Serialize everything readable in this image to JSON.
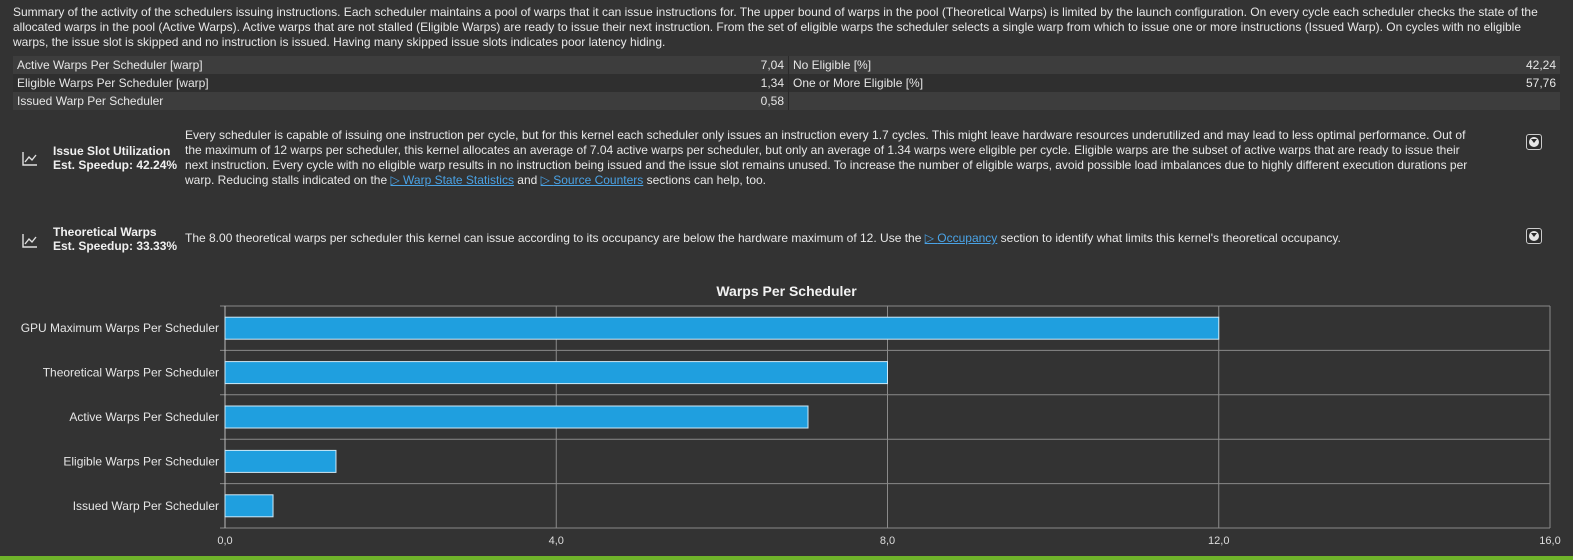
{
  "summary": "Summary of the activity of the schedulers issuing instructions. Each scheduler maintains a pool of warps that it can issue instructions for. The upper bound of warps in the pool (Theoretical Warps) is limited by the launch configuration. On every cycle each scheduler checks the state of the allocated warps in the pool (Active Warps). Active warps that are not stalled (Eligible Warps) are ready to issue their next instruction. From the set of eligible warps the scheduler selects a single warp from which to issue one or more instructions (Issued Warp). On cycles with no eligible warps, the issue slot is skipped and no instruction is issued. Having many skipped issue slots indicates poor latency hiding.",
  "metrics": [
    {
      "left_label": "Active Warps Per Scheduler [warp]",
      "left_value": "7,04",
      "right_label": "No Eligible [%]",
      "right_value": "42,24"
    },
    {
      "left_label": "Eligible Warps Per Scheduler [warp]",
      "left_value": "1,34",
      "right_label": "One or More Eligible [%]",
      "right_value": "57,76"
    },
    {
      "left_label": "Issued Warp Per Scheduler",
      "left_value": "0,58",
      "right_label": "",
      "right_value": ""
    }
  ],
  "rules": [
    {
      "title": "Issue Slot Utilization",
      "speedup": "Est. Speedup: 42.24%",
      "text_a": "Every scheduler is capable of issuing one instruction per cycle, but for this kernel each scheduler only issues an instruction every 1.7 cycles. This might leave hardware resources underutilized and may lead to less optimal performance. Out of the maximum of 12 warps per scheduler, this kernel allocates an average of 7.04 active warps per scheduler, but only an average of 1.34 warps were eligible per cycle. Eligible warps are the subset of active warps that are ready to issue their next instruction. Every cycle with no eligible warp results in no instruction being issued and the issue slot remains unused. To increase the number of eligible warps, avoid possible load imbalances due to highly different execution durations per warp. Reducing stalls indicated on the ",
      "link1": "Warp State Statistics",
      "text_b": " and ",
      "link2": "Source Counters",
      "text_c": " sections can help, too.",
      "icon": "line-chart-icon"
    },
    {
      "title": "Theoretical Warps",
      "speedup": "Est. Speedup: 33.33%",
      "text_a": "The 8.00 theoretical warps per scheduler this kernel can issue according to its occupancy are below the hardware maximum of 12. Use the ",
      "link1": "Occupancy",
      "text_b": " section to identify what limits this kernel's theoretical occupancy.",
      "icon": "line-chart-icon"
    }
  ],
  "chart_data": {
    "type": "bar",
    "orientation": "horizontal",
    "title": "Warps Per Scheduler",
    "categories": [
      "GPU Maximum Warps Per Scheduler",
      "Theoretical Warps Per Scheduler",
      "Active Warps Per Scheduler",
      "Eligible Warps Per Scheduler",
      "Issued Warp Per Scheduler"
    ],
    "values": [
      12,
      8,
      7.04,
      1.34,
      0.58
    ],
    "xlim": [
      0,
      16
    ],
    "xticks": [
      "0,0",
      "4,0",
      "8,0",
      "12,0",
      "16,0"
    ],
    "bar_color": "#1f9fdf",
    "grid": true
  }
}
